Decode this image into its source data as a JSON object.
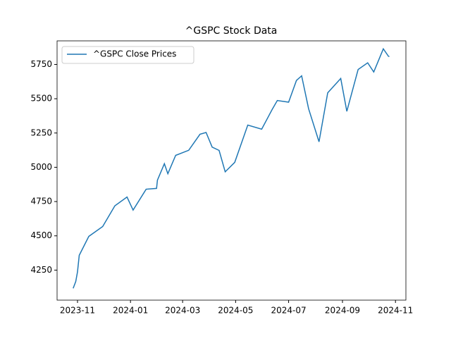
{
  "chart_data": {
    "type": "line",
    "title": "^GSPC Stock Data",
    "x": [
      19657,
      19660,
      19662,
      19664,
      19675,
      19691,
      19705,
      19719,
      19726,
      19741,
      19753,
      19754,
      19762,
      19766,
      19775,
      19790,
      19803,
      19810,
      19817,
      19825,
      19832,
      19843,
      19858,
      19874,
      19886,
      19892,
      19905,
      19914,
      19920,
      19928,
      19940,
      19950,
      19965,
      19972,
      19985,
      19996,
      20003,
      20014,
      20020,
      20021
    ],
    "series": [
      {
        "name": "^GSPC Close Prices",
        "color": "#1f77b4",
        "values": [
          4117,
          4167,
          4237,
          4358,
          4496,
          4568,
          4719,
          4783,
          4688,
          4840,
          4846,
          4906,
          5026,
          4953,
          5087,
          5124,
          5241,
          5254,
          5147,
          5123,
          4967,
          5036,
          5308,
          5278,
          5421,
          5487,
          5475,
          5633,
          5667,
          5427,
          5186,
          5543,
          5648,
          5408,
          5713,
          5762,
          5695,
          5864,
          5809,
          5808
        ]
      }
    ],
    "xlim": [
      19638.5,
      20040
    ],
    "xticks": [
      {
        "value": 19662,
        "label": "2023-11"
      },
      {
        "value": 19723,
        "label": "2024-01"
      },
      {
        "value": 19783,
        "label": "2024-03"
      },
      {
        "value": 19844,
        "label": "2024-05"
      },
      {
        "value": 19905,
        "label": "2024-07"
      },
      {
        "value": 19967,
        "label": "2024-09"
      },
      {
        "value": 20028,
        "label": "2024-11"
      }
    ],
    "ylim": [
      4031,
      5922
    ],
    "yticks": [
      4250,
      4500,
      4750,
      5000,
      5250,
      5500,
      5750
    ],
    "grid": false,
    "legend": "upper-left"
  }
}
